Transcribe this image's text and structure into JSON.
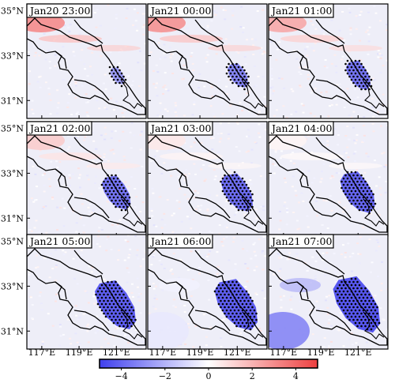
{
  "chart_data": {
    "type": "heatmap",
    "colormap": {
      "low": "#4040ee",
      "mid": "#ffffff",
      "high": "#ee4040"
    },
    "colorbar": {
      "range": [
        -5,
        5
      ],
      "ticks": [
        -4,
        -2,
        0,
        2,
        4
      ],
      "tick_labels": [
        "−4",
        "−2",
        "0",
        "2",
        "4"
      ]
    },
    "lon_ticks": [
      117,
      119,
      121
    ],
    "lon_tick_labels": [
      "117°E",
      "119°E",
      "121°E"
    ],
    "lat_ticks": [
      35,
      33,
      31
    ],
    "lat_tick_labels": [
      "35°N",
      "33°N",
      "31°N"
    ],
    "lon_range": [
      116.2,
      122.6
    ],
    "lat_range": [
      30.2,
      35.3
    ],
    "panels": [
      {
        "title": "Jan20 23:00",
        "anomaly_strength": -2.6,
        "extent": 0.35,
        "stipple_extent": 0.45,
        "nw_red": 3.2,
        "sw_blue": 0
      },
      {
        "title": "Jan21 00:00",
        "anomaly_strength": -3.2,
        "extent": 0.5,
        "stipple_extent": 0.6,
        "nw_red": 3.0,
        "sw_blue": 0
      },
      {
        "title": "Jan21 01:00",
        "anomaly_strength": -3.6,
        "extent": 0.6,
        "stipple_extent": 0.7,
        "nw_red": 2.4,
        "sw_blue": 0
      },
      {
        "title": "Jan21 02:00",
        "anomaly_strength": -3.6,
        "extent": 0.7,
        "stipple_extent": 0.78,
        "nw_red": 1.4,
        "sw_blue": 0
      },
      {
        "title": "Jan21 03:00",
        "anomaly_strength": -3.8,
        "extent": 0.78,
        "stipple_extent": 0.85,
        "nw_red": 0.6,
        "sw_blue": 0
      },
      {
        "title": "Jan21 04:00",
        "anomaly_strength": -4.0,
        "extent": 0.85,
        "stipple_extent": 0.9,
        "nw_red": 0.3,
        "sw_blue": 0
      },
      {
        "title": "Jan21 05:00",
        "anomaly_strength": -4.2,
        "extent": 1.0,
        "stipple_extent": 1.0,
        "nw_red": 0,
        "sw_blue": 0
      },
      {
        "title": "Jan21 06:00",
        "anomaly_strength": -4.2,
        "extent": 1.05,
        "stipple_extent": 1.05,
        "nw_red": 0,
        "sw_blue": 0.6
      },
      {
        "title": "Jan21 07:00",
        "anomaly_strength": -4.4,
        "extent": 1.15,
        "stipple_extent": 1.1,
        "nw_red": 0,
        "sw_blue": 3.2
      }
    ]
  }
}
